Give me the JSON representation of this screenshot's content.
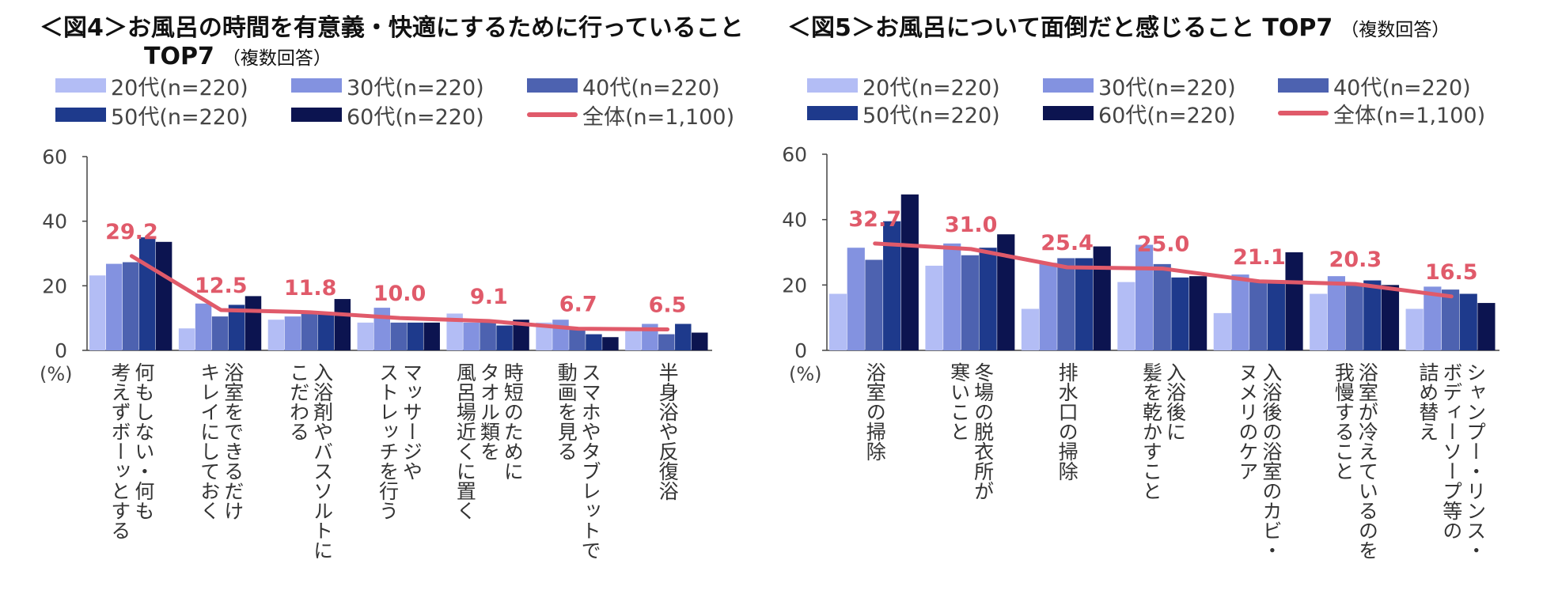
{
  "chart_data": [
    {
      "type": "bar",
      "title": "＜図4＞お風呂の時間を有意義・快適にするために行っていること",
      "title_line2": "TOP7",
      "subtitle": "（複数回答）",
      "ylabel": "(%)",
      "ylim": [
        0,
        60
      ],
      "yticks": [
        0,
        20,
        40,
        60
      ],
      "categories": [
        [
          "何もしない・何も",
          "考えずボーッとする"
        ],
        [
          "浴室をできるだけ",
          "キレイにしておく"
        ],
        [
          "入浴剤やバスソルトに",
          "こだわる"
        ],
        [
          "マッサージや",
          "ストレッチを行う"
        ],
        [
          "時短のために",
          "タオル類を",
          "風呂場近くに置く"
        ],
        [
          "スマホやタブレットで",
          "動画を見る"
        ],
        [
          "半身浴や反復浴"
        ]
      ],
      "series": [
        {
          "name": "20代(n=220)",
          "color": "#b3bdf5",
          "values": [
            23.2,
            6.8,
            9.5,
            8.6,
            11.4,
            8.6,
            6.4
          ]
        },
        {
          "name": "30代(n=220)",
          "color": "#8392e0",
          "values": [
            26.8,
            14.5,
            10.5,
            13.2,
            8.6,
            9.5,
            8.2
          ]
        },
        {
          "name": "40代(n=220)",
          "color": "#4d62b0",
          "values": [
            27.3,
            10.5,
            11.4,
            8.6,
            9.1,
            6.4,
            5.0
          ]
        },
        {
          "name": "50代(n=220)",
          "color": "#1e3a8c",
          "values": [
            35.0,
            14.1,
            11.8,
            8.6,
            7.7,
            5.0,
            8.2
          ]
        },
        {
          "name": "60代(n=220)",
          "color": "#0c1450",
          "values": [
            33.6,
            16.8,
            15.9,
            8.6,
            9.5,
            4.1,
            5.5
          ]
        }
      ],
      "line": {
        "name": "全体(n=1,100)",
        "color": "#e05a6a",
        "values": [
          29.2,
          12.5,
          11.8,
          10.0,
          9.1,
          6.7,
          6.5
        ]
      }
    },
    {
      "type": "bar",
      "title": "＜図5＞お風呂について面倒だと感じること TOP7",
      "title_line2": "",
      "subtitle": "（複数回答）",
      "ylabel": "(%)",
      "ylim": [
        0,
        60
      ],
      "yticks": [
        0,
        20,
        40,
        60
      ],
      "categories": [
        [
          "浴室の掃除"
        ],
        [
          "冬場の脱衣所が",
          "寒いこと"
        ],
        [
          "排水口の掃除"
        ],
        [
          "入浴後に",
          "髪を乾かすこと"
        ],
        [
          "入浴後の浴室のカビ・",
          "ヌメリのケア"
        ],
        [
          "浴室が冷えているのを",
          "我慢すること"
        ],
        [
          "シャンプー・リンス・",
          "ボディーソープ等の",
          "詰め替え"
        ]
      ],
      "series": [
        {
          "name": "20代(n=220)",
          "color": "#b3bdf5",
          "values": [
            17.3,
            25.9,
            12.7,
            20.9,
            11.4,
            17.3,
            12.7
          ]
        },
        {
          "name": "30代(n=220)",
          "color": "#8392e0",
          "values": [
            31.4,
            32.7,
            26.8,
            32.3,
            23.2,
            22.7,
            19.5
          ]
        },
        {
          "name": "40代(n=220)",
          "color": "#4d62b0",
          "values": [
            27.7,
            29.1,
            28.2,
            26.4,
            20.9,
            20.5,
            18.6
          ]
        },
        {
          "name": "50代(n=220)",
          "color": "#1e3a8c",
          "values": [
            39.5,
            31.4,
            28.2,
            22.3,
            20.5,
            21.4,
            17.3
          ]
        },
        {
          "name": "60代(n=220)",
          "color": "#0c1450",
          "values": [
            47.7,
            35.5,
            31.8,
            22.7,
            30.0,
            20.0,
            14.5
          ]
        }
      ],
      "line": {
        "name": "全体(n=1,100)",
        "color": "#e05a6a",
        "values": [
          32.7,
          31.0,
          25.4,
          25.0,
          21.1,
          20.3,
          16.5
        ]
      }
    }
  ]
}
